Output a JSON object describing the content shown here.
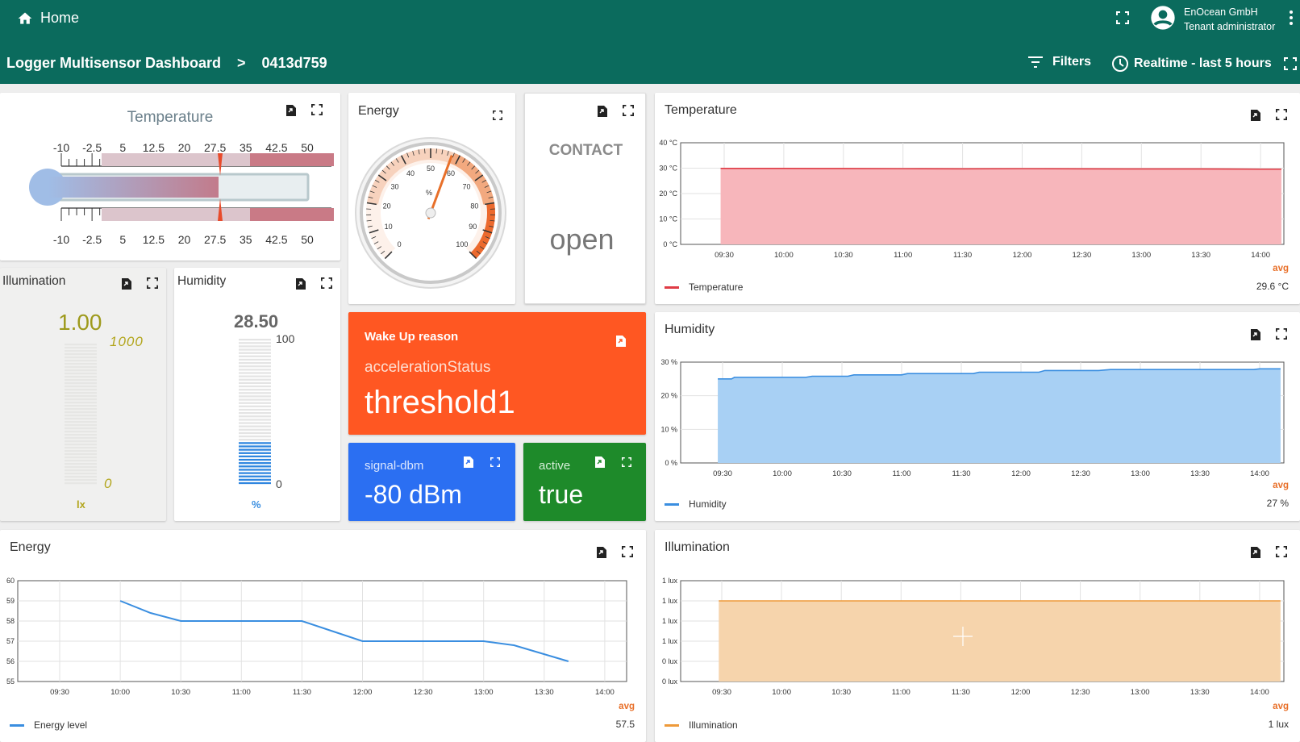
{
  "header": {
    "home_label": "Home",
    "tenant_name": "EnOcean GmbH",
    "tenant_role": "Tenant administrator",
    "dashboard_title": "Logger Multisensor Dashboard",
    "breadcrumb_sep": ">",
    "device_id": "0413d759",
    "filters_label": "Filters",
    "time_label": "Realtime - last 5 hours"
  },
  "widgets": {
    "temperature_gauge": {
      "title": "Temperature",
      "scale": [
        "-10",
        "-2.5",
        "5",
        "12.5",
        "20",
        "27.5",
        "35",
        "42.5",
        "50"
      ],
      "value": 27.5
    },
    "energy_gauge": {
      "title": "Energy",
      "ticks": [
        "0",
        "10",
        "20",
        "30",
        "40",
        "50",
        "60",
        "70",
        "80",
        "90",
        "100"
      ],
      "unit": "%",
      "value": 57.5
    },
    "contact": {
      "title": "CONTACT",
      "value": "open"
    },
    "illumination": {
      "title": "Illumination",
      "value": "1.00",
      "max": "1000",
      "min": "0",
      "unit": "lx",
      "level": 0.001
    },
    "humidity": {
      "title": "Humidity",
      "value": "28.50",
      "max": "100",
      "min": "0",
      "unit": "%",
      "level": 0.285
    },
    "wakeup": {
      "title": "Wake Up reason",
      "key": "accelerationStatus",
      "value": "threshold1",
      "color": "#ff5722"
    },
    "signal": {
      "title": "signal-dbm",
      "value": "-80 dBm",
      "color": "#2b6ff2"
    },
    "active": {
      "title": "active",
      "value": "true",
      "color": "#1e8a2a"
    }
  },
  "charts": {
    "temperature": {
      "title": "Temperature",
      "avg_label": "avg",
      "avg_value": "29.6 °C",
      "legend": "Temperature",
      "color": "#e03b45",
      "y_ticks": [
        "40 °C",
        "30 °C",
        "20 °C",
        "10 °C",
        "0 °C"
      ],
      "x_ticks": [
        "09:30",
        "10:00",
        "10:30",
        "11:00",
        "11:30",
        "12:00",
        "12:30",
        "13:00",
        "13:30",
        "14:00"
      ]
    },
    "humidity": {
      "title": "Humidity",
      "avg_label": "avg",
      "avg_value": "27 %",
      "legend": "Humidity",
      "color": "#3a8ee0",
      "y_ticks": [
        "30 %",
        "20 %",
        "10 %",
        "0 %"
      ],
      "x_ticks": [
        "09:30",
        "10:00",
        "10:30",
        "11:00",
        "11:30",
        "12:00",
        "12:30",
        "13:00",
        "13:30",
        "14:00"
      ]
    },
    "energy": {
      "title": "Energy",
      "avg_label": "avg",
      "avg_value": "57.5",
      "legend": "Energy level",
      "color": "#3a8ee0",
      "y_ticks": [
        "60",
        "59",
        "58",
        "57",
        "56",
        "55"
      ],
      "x_ticks": [
        "09:30",
        "10:00",
        "10:30",
        "11:00",
        "11:30",
        "12:00",
        "12:30",
        "13:00",
        "13:30",
        "14:00"
      ]
    },
    "illumination": {
      "title": "Illumination",
      "avg_label": "avg",
      "avg_value": "1 lux",
      "legend": "Illumination",
      "color": "#ee9a3a",
      "y_ticks": [
        "1 lux",
        "1 lux",
        "1 lux",
        "1 lux",
        "0 lux",
        "0 lux"
      ],
      "x_ticks": [
        "09:30",
        "10:00",
        "10:30",
        "11:00",
        "11:30",
        "12:00",
        "12:30",
        "13:00",
        "13:30",
        "14:00"
      ]
    }
  },
  "chart_data": [
    {
      "type": "area",
      "title": "Temperature",
      "x": [
        "09:25",
        "14:10"
      ],
      "series": [
        {
          "name": "Temperature",
          "values": [
            29.9,
            29.6
          ]
        }
      ],
      "ylim": [
        0,
        40
      ]
    },
    {
      "type": "area",
      "title": "Humidity",
      "x": [
        "09:25",
        "10:00",
        "10:30",
        "11:00",
        "11:30",
        "12:00",
        "12:30",
        "13:00",
        "13:30",
        "14:10"
      ],
      "series": [
        {
          "name": "Humidity",
          "values": [
            25,
            25.5,
            25.8,
            26.2,
            26.6,
            27,
            27.5,
            27.8,
            28,
            28.5
          ]
        }
      ],
      "ylim": [
        0,
        30
      ]
    },
    {
      "type": "line",
      "title": "Energy",
      "x": [
        "10:00",
        "10:30",
        "11:00",
        "11:30",
        "12:00",
        "12:30",
        "13:00",
        "13:30"
      ],
      "series": [
        {
          "name": "Energy level",
          "values": [
            59,
            58,
            58,
            58,
            57,
            57,
            57,
            56
          ]
        }
      ],
      "ylim": [
        55,
        60
      ]
    },
    {
      "type": "area",
      "title": "Illumination",
      "x": [
        "09:25",
        "14:10"
      ],
      "series": [
        {
          "name": "Illumination",
          "values": [
            1,
            1
          ]
        }
      ]
    }
  ]
}
